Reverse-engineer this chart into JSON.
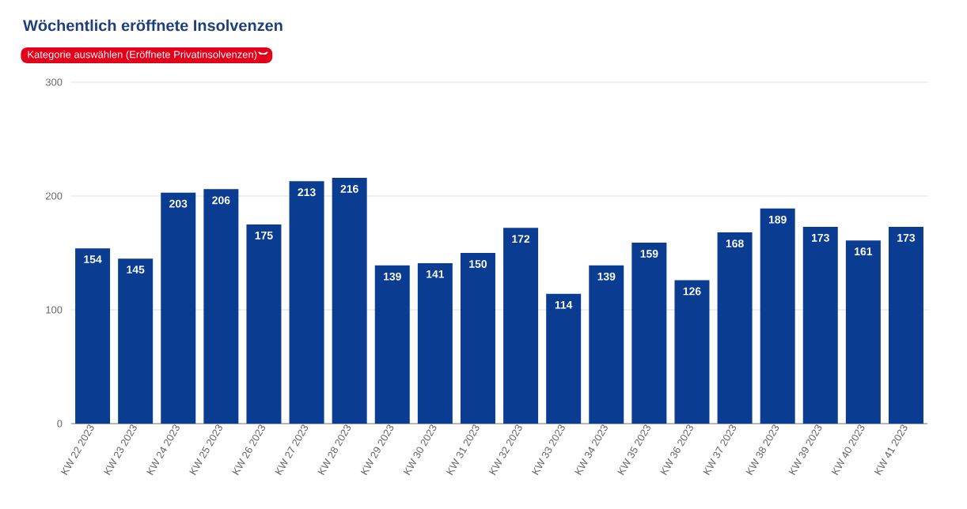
{
  "chart_data": {
    "type": "bar",
    "title": "Wöchentlich eröffnete Insolvenzen",
    "subtitle": "Kategorie auswählen (Eröffnete Privatinsolvenzen)",
    "categories": [
      "KW 22 2023",
      "KW 23 2023",
      "KW 24 2023",
      "KW 25 2023",
      "KW 26 2023",
      "KW 27 2023",
      "KW 28 2023",
      "KW 29 2023",
      "KW 30 2023",
      "KW 31 2023",
      "KW 32 2023",
      "KW 33 2023",
      "KW 34 2023",
      "KW 35 2023",
      "KW 36 2023",
      "KW 37 2023",
      "KW 38 2023",
      "KW 39 2023",
      "KW 40 2023",
      "KW 41 2023"
    ],
    "values": [
      154,
      145,
      203,
      206,
      175,
      213,
      216,
      139,
      141,
      150,
      172,
      114,
      139,
      159,
      126,
      168,
      189,
      173,
      161,
      173
    ],
    "color": "#0a3d91",
    "ylim": [
      0,
      300
    ],
    "yticks": [
      0,
      100,
      200,
      300
    ],
    "grid": "y",
    "data_labels": true
  }
}
